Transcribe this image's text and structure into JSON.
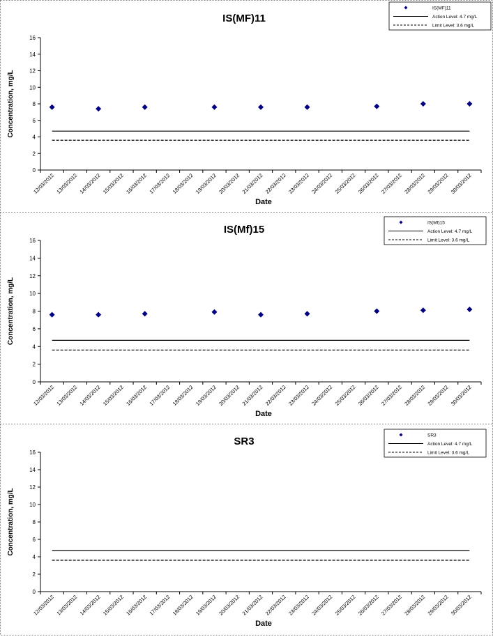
{
  "page": {
    "border_color": "#808080",
    "marker_color": "#000080"
  },
  "chart_data": [
    {
      "type": "scatter",
      "title": "IS(MF)11",
      "xlabel": "Date",
      "ylabel": "Concentration, mg/L",
      "ylim": [
        0,
        16
      ],
      "yticks": [
        0,
        2,
        4,
        6,
        8,
        10,
        12,
        14,
        16
      ],
      "categories": [
        "12/03/2012",
        "13/03/2012",
        "14/03/2012",
        "15/03/2012",
        "16/03/2012",
        "17/03/2012",
        "18/03/2012",
        "19/03/2012",
        "20/03/2012",
        "21/03/2012",
        "22/03/2012",
        "23/03/2012",
        "24/03/2012",
        "25/03/2012",
        "26/03/2012",
        "27/03/2012",
        "28/03/2012",
        "29/03/2012",
        "30/03/2012"
      ],
      "series": [
        {
          "name": "IS(MF)11",
          "kind": "marker",
          "points": [
            {
              "x": "12/03/2012",
              "y": 7.6
            },
            {
              "x": "14/03/2012",
              "y": 7.4
            },
            {
              "x": "16/03/2012",
              "y": 7.6
            },
            {
              "x": "19/03/2012",
              "y": 7.6
            },
            {
              "x": "21/03/2012",
              "y": 7.6
            },
            {
              "x": "23/03/2012",
              "y": 7.6
            },
            {
              "x": "26/03/2012",
              "y": 7.7
            },
            {
              "x": "28/03/2012",
              "y": 8.0
            },
            {
              "x": "30/03/2012",
              "y": 8.0
            }
          ]
        },
        {
          "name": "Action Level: 4.7 mg/L",
          "kind": "line",
          "style": "solid",
          "value": 4.7
        },
        {
          "name": "Limit Level: 3.6 mg/L",
          "kind": "line",
          "style": "dashed",
          "value": 3.6
        }
      ],
      "legend_position": "top-right",
      "grid": false
    },
    {
      "type": "scatter",
      "title": "IS(Mf)15",
      "xlabel": "Date",
      "ylabel": "Concentration, mg/L",
      "ylim": [
        0,
        16
      ],
      "yticks": [
        0,
        2,
        4,
        6,
        8,
        10,
        12,
        14,
        16
      ],
      "categories": [
        "12/03/2012",
        "13/03/2012",
        "14/03/2012",
        "15/03/2012",
        "16/03/2012",
        "17/03/2012",
        "18/03/2012",
        "19/03/2012",
        "20/03/2012",
        "21/03/2012",
        "22/03/2012",
        "23/03/2012",
        "24/03/2012",
        "25/03/2012",
        "26/03/2012",
        "27/03/2012",
        "28/03/2012",
        "29/03/2012",
        "30/03/2012"
      ],
      "series": [
        {
          "name": "IS(Mf)15",
          "kind": "marker",
          "points": [
            {
              "x": "12/03/2012",
              "y": 7.6
            },
            {
              "x": "14/03/2012",
              "y": 7.6
            },
            {
              "x": "16/03/2012",
              "y": 7.7
            },
            {
              "x": "19/03/2012",
              "y": 7.9
            },
            {
              "x": "21/03/2012",
              "y": 7.6
            },
            {
              "x": "23/03/2012",
              "y": 7.7
            },
            {
              "x": "26/03/2012",
              "y": 8.0
            },
            {
              "x": "28/03/2012",
              "y": 8.1
            },
            {
              "x": "30/03/2012",
              "y": 8.2
            }
          ]
        },
        {
          "name": "Action Level: 4.7 mg/L",
          "kind": "line",
          "style": "solid",
          "value": 4.7
        },
        {
          "name": "Limit Level: 3.6 mg/L",
          "kind": "line",
          "style": "dashed",
          "value": 3.6
        }
      ],
      "legend_position": "top-right",
      "grid": false
    },
    {
      "type": "scatter",
      "title": "SR3",
      "xlabel": "Date",
      "ylabel": "Concentration, mg/L",
      "ylim": [
        0,
        16
      ],
      "yticks": [
        0,
        2,
        4,
        6,
        8,
        10,
        12,
        14,
        16
      ],
      "categories": [
        "12/03/2012",
        "13/03/2012",
        "14/03/2012",
        "15/03/2012",
        "16/03/2012",
        "17/03/2012",
        "18/03/2012",
        "19/03/2012",
        "20/03/2012",
        "21/03/2012",
        "22/03/2012",
        "23/03/2012",
        "24/03/2012",
        "25/03/2012",
        "26/03/2012",
        "27/03/2012",
        "28/03/2012",
        "29/03/2012",
        "30/03/2012"
      ],
      "series": [
        {
          "name": "SR3",
          "kind": "marker",
          "points": []
        },
        {
          "name": "Action Level: 4.7 mg/L",
          "kind": "line",
          "style": "solid",
          "value": 4.7
        },
        {
          "name": "Limit Level: 3.6 mg/L",
          "kind": "line",
          "style": "dashed",
          "value": 3.6
        }
      ],
      "legend_position": "top-right",
      "grid": false
    }
  ]
}
